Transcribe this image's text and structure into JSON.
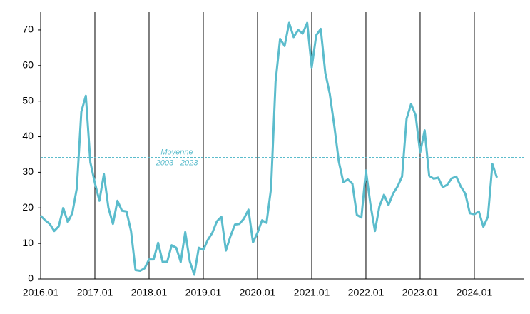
{
  "chart_data": {
    "type": "line",
    "categories": [
      "2016.01",
      null,
      null,
      null,
      null,
      null,
      null,
      null,
      null,
      null,
      null,
      null,
      "2017.01",
      null,
      null,
      null,
      null,
      null,
      null,
      null,
      null,
      null,
      null,
      null,
      "2018.01",
      null,
      null,
      null,
      null,
      null,
      null,
      null,
      null,
      null,
      null,
      null,
      "2019.01",
      null,
      null,
      null,
      null,
      null,
      null,
      null,
      null,
      null,
      null,
      null,
      "2020.01",
      null,
      null,
      null,
      null,
      null,
      null,
      null,
      null,
      null,
      null,
      null,
      "2021.01",
      null,
      null,
      null,
      null,
      null,
      null,
      null,
      null,
      null,
      null,
      null,
      "2022.01",
      null,
      null,
      null,
      null,
      null,
      null,
      null,
      null,
      null,
      null,
      null,
      "2023.01",
      null,
      null,
      null,
      null,
      null,
      null,
      null,
      null,
      null,
      null,
      null,
      "2024.01",
      null,
      null,
      null,
      null,
      null
    ],
    "values": [
      17.8,
      16.5,
      15.5,
      13.5,
      14.8,
      20,
      16,
      18.5,
      25.5,
      47,
      51.5,
      32.8,
      27,
      22,
      29.5,
      20,
      15.5,
      22,
      19.2,
      19,
      13.5,
      2.5,
      2.3,
      3,
      5.5,
      5.5,
      10.2,
      4.8,
      4.8,
      9.5,
      8.8,
      4.8,
      13.2,
      5,
      1.2,
      8.8,
      8.2,
      11,
      13,
      16.2,
      17.5,
      8,
      12,
      15.3,
      15.5,
      17,
      19.5,
      10.3,
      13,
      16.5,
      15.8,
      25.5,
      55.5,
      67.5,
      65.5,
      72,
      68,
      70,
      69,
      72,
      59.5,
      68.5,
      70.3,
      58,
      52,
      43,
      33,
      27.2,
      28,
      26.8,
      18,
      17.3,
      30.5,
      21,
      13.5,
      20.5,
      23.7,
      20.8,
      24,
      26,
      28.8,
      45,
      49.2,
      46,
      35.5,
      41.8,
      29,
      28.2,
      28.5,
      25.8,
      26.5,
      28.3,
      28.8,
      26,
      24,
      18.5,
      18.2,
      19,
      14.7,
      17.5,
      32.3,
      28.5
    ],
    "color": "#5bbccc",
    "ylim": [
      0,
      75
    ],
    "yticks": [
      0,
      10,
      20,
      30,
      40,
      50,
      60,
      70
    ],
    "x_grid": true,
    "reference_line": {
      "value": 34.2,
      "label_lines": [
        "Moyenne",
        "2003 - 2023"
      ],
      "color": "#5bbccc"
    }
  }
}
